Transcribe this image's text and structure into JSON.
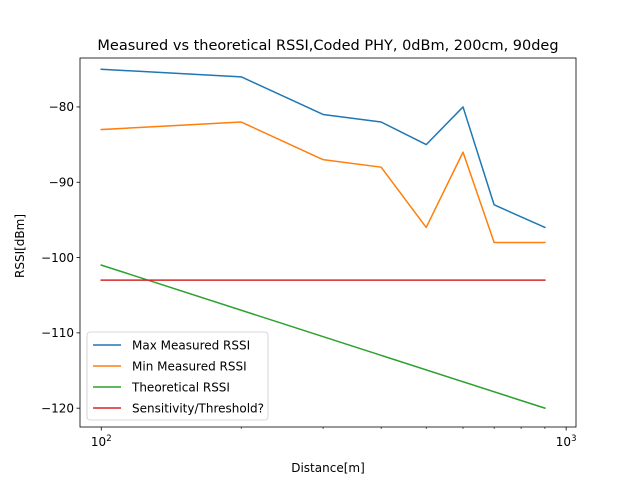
{
  "chart_data": {
    "type": "line",
    "title": "Measured vs theoretical RSSI,Coded PHY, 0dBm, 200cm, 90deg",
    "xlabel": "Distance[m]",
    "ylabel": "RSSI[dBm]",
    "xscale": "log",
    "xlim": [
      90,
      1050
    ],
    "ylim": [
      -122.5,
      -73.5
    ],
    "x_ticks": [
      {
        "value": 100,
        "base": "10",
        "exp": "2"
      },
      {
        "value": 1000,
        "base": "10",
        "exp": "3"
      }
    ],
    "x_minor_ticks": [
      200,
      300,
      400,
      500,
      600,
      700,
      800,
      900
    ],
    "y_ticks": [
      -80,
      -90,
      -100,
      -110,
      -120
    ],
    "y_tick_labels": [
      "−80",
      "−90",
      "−100",
      "−110",
      "−120"
    ],
    "grid": false,
    "legend_position": "lower-left",
    "series": [
      {
        "name": "Max Measured RSSI",
        "color": "#1f77b4",
        "x": [
          100,
          200,
          300,
          400,
          500,
          600,
          700,
          900
        ],
        "y": [
          -75,
          -76,
          -81,
          -82,
          -85,
          -80,
          -93,
          -96
        ]
      },
      {
        "name": "Min Measured RSSI",
        "color": "#ff7f0e",
        "x": [
          100,
          200,
          300,
          400,
          500,
          600,
          700,
          900
        ],
        "y": [
          -83,
          -82,
          -87,
          -88,
          -96,
          -86,
          -98,
          -98
        ]
      },
      {
        "name": "Theoretical RSSI",
        "color": "#2ca02c",
        "x": [
          100,
          900
        ],
        "y": [
          -101,
          -120
        ]
      },
      {
        "name": "Sensitivity/Threshold?",
        "color": "#d62728",
        "x": [
          100,
          900
        ],
        "y": [
          -103,
          -103
        ]
      }
    ]
  }
}
